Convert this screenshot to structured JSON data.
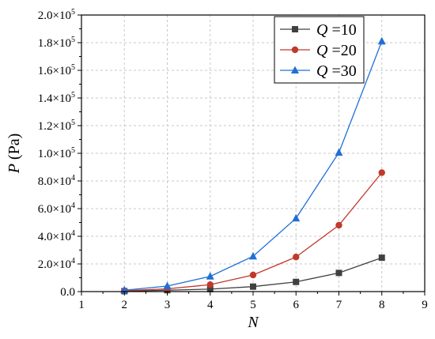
{
  "chart_data": {
    "type": "line",
    "xlabel": "N",
    "ylabel_var": "P",
    "ylabel_unit": "(Pa)",
    "xlim": [
      1,
      9
    ],
    "ylim": [
      0,
      200000
    ],
    "xticks": [
      1,
      2,
      3,
      4,
      5,
      6,
      7,
      8,
      9
    ],
    "yticks": [
      {
        "value": 0,
        "mant": "0.0",
        "exp": ""
      },
      {
        "value": 20000,
        "mant": "2.0×10",
        "exp": "4"
      },
      {
        "value": 40000,
        "mant": "4.0×10",
        "exp": "4"
      },
      {
        "value": 60000,
        "mant": "6.0×10",
        "exp": "4"
      },
      {
        "value": 80000,
        "mant": "8.0×10",
        "exp": "4"
      },
      {
        "value": 100000,
        "mant": "1.0×10",
        "exp": "5"
      },
      {
        "value": 120000,
        "mant": "1.2×10",
        "exp": "5"
      },
      {
        "value": 140000,
        "mant": "1.4×10",
        "exp": "5"
      },
      {
        "value": 160000,
        "mant": "1.6×10",
        "exp": "5"
      },
      {
        "value": 180000,
        "mant": "1.8×10",
        "exp": "5"
      },
      {
        "value": 200000,
        "mant": "2.0×10",
        "exp": "5"
      }
    ],
    "grid": true,
    "legend_position": "top-right",
    "x": [
      2,
      3,
      4,
      5,
      6,
      7,
      8
    ],
    "series": [
      {
        "var": "Q",
        "value": "=10",
        "marker": "square",
        "color": "#404040",
        "values": [
          300,
          1000,
          1800,
          3600,
          7000,
          13500,
          24500
        ]
      },
      {
        "var": "Q",
        "value": "=20",
        "marker": "circle",
        "color": "#c0392b",
        "values": [
          600,
          2000,
          5000,
          12000,
          25000,
          48000,
          86000
        ]
      },
      {
        "var": "Q",
        "value": "=30",
        "marker": "triangle",
        "color": "#1f6fd6",
        "values": [
          1000,
          4000,
          11000,
          25500,
          53000,
          100500,
          181000
        ]
      }
    ]
  }
}
